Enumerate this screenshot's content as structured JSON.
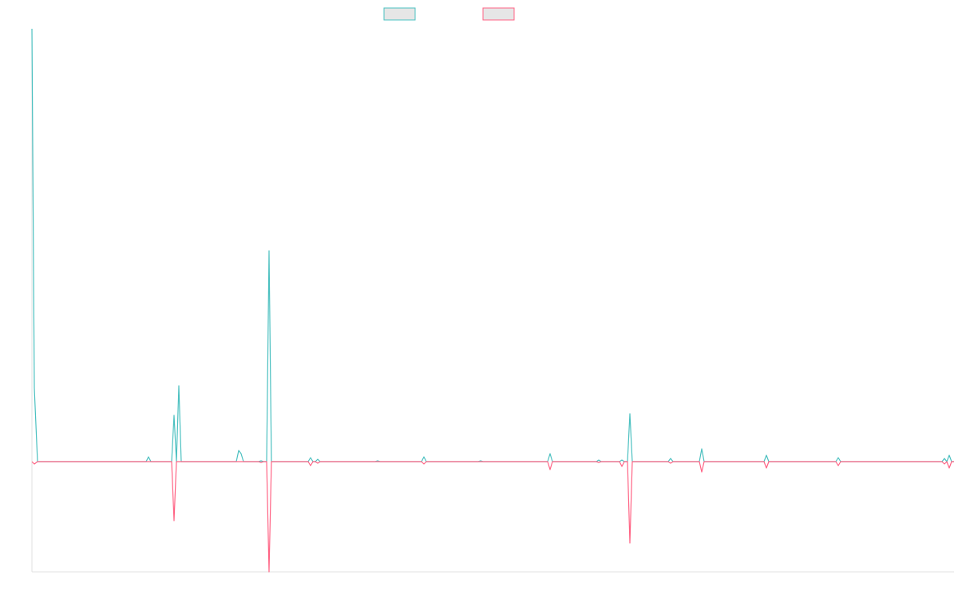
{
  "chart_data": {
    "type": "line",
    "x": [
      0,
      3,
      7,
      143,
      146,
      149,
      175,
      178,
      181,
      184,
      187,
      256,
      259,
      262,
      265,
      284,
      287,
      290,
      294,
      297,
      300,
      346,
      349,
      352,
      355,
      358,
      361,
      430,
      433,
      436,
      488,
      491,
      494,
      559,
      562,
      565,
      646,
      649,
      652,
      707,
      710,
      713,
      736,
      739,
      742,
      746,
      749,
      752,
      797,
      800,
      803,
      836,
      839,
      842,
      917,
      920,
      923,
      1007,
      1010,
      1013,
      1140,
      1143,
      1146,
      1149,
      1152,
      1155
    ],
    "xlim": [
      0,
      1155
    ],
    "ylim": [
      -138,
      542
    ],
    "series": [
      {
        "color": "#4bc0c0",
        "values": [
          542,
          92,
          0,
          0,
          6,
          0,
          0,
          58,
          0,
          95,
          0,
          0,
          14,
          10,
          0,
          0,
          1,
          0,
          0,
          264,
          0,
          0,
          5,
          0,
          0,
          3,
          0,
          0,
          1,
          0,
          0,
          6,
          0,
          0,
          1,
          0,
          0,
          10,
          0,
          0,
          2,
          0,
          0,
          2,
          0,
          0,
          60,
          0,
          0,
          4,
          0,
          0,
          16,
          0,
          0,
          8,
          0,
          0,
          5,
          0,
          0,
          4,
          0,
          8,
          0,
          0
        ]
      },
      {
        "color": "#ff6384",
        "values": [
          0,
          -3,
          0,
          0,
          0,
          0,
          0,
          -74,
          0,
          0,
          0,
          0,
          0,
          0,
          0,
          0,
          -1,
          0,
          0,
          -138,
          0,
          0,
          -5,
          0,
          0,
          -2,
          0,
          0,
          0,
          0,
          0,
          -3,
          0,
          0,
          0,
          0,
          0,
          -10,
          0,
          0,
          -1,
          0,
          0,
          -6,
          0,
          0,
          -102,
          0,
          0,
          -2,
          0,
          0,
          -13,
          0,
          0,
          -8,
          0,
          0,
          -5,
          0,
          0,
          -3,
          0,
          -8,
          0,
          0
        ]
      }
    ]
  }
}
